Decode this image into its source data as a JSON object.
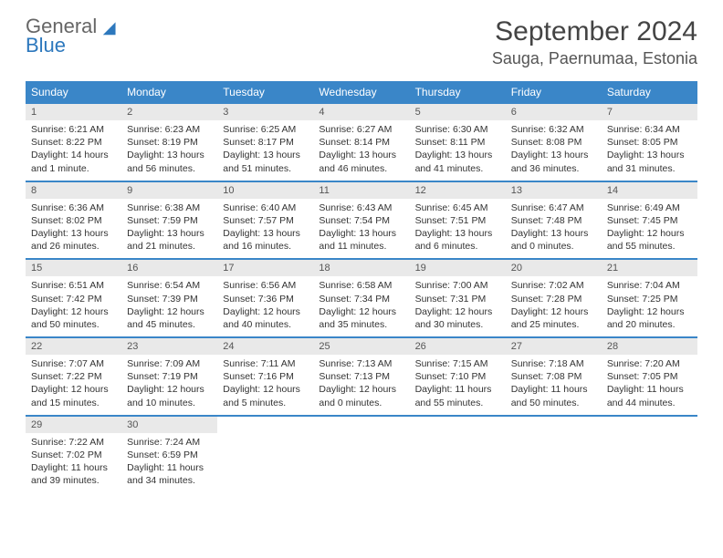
{
  "logo": {
    "line1": "General",
    "line2": "Blue"
  },
  "title": "September 2024",
  "location": "Sauga, Paernumaa, Estonia",
  "colors": {
    "header_bg": "#3a86c8",
    "header_text": "#ffffff",
    "daynum_bg": "#e9e9e9",
    "week_border": "#3a86c8",
    "logo_blue": "#2d78bd"
  },
  "weekdays": [
    "Sunday",
    "Monday",
    "Tuesday",
    "Wednesday",
    "Thursday",
    "Friday",
    "Saturday"
  ],
  "days": [
    {
      "n": 1,
      "sunrise": "6:21 AM",
      "sunset": "8:22 PM",
      "daylight": "14 hours and 1 minute."
    },
    {
      "n": 2,
      "sunrise": "6:23 AM",
      "sunset": "8:19 PM",
      "daylight": "13 hours and 56 minutes."
    },
    {
      "n": 3,
      "sunrise": "6:25 AM",
      "sunset": "8:17 PM",
      "daylight": "13 hours and 51 minutes."
    },
    {
      "n": 4,
      "sunrise": "6:27 AM",
      "sunset": "8:14 PM",
      "daylight": "13 hours and 46 minutes."
    },
    {
      "n": 5,
      "sunrise": "6:30 AM",
      "sunset": "8:11 PM",
      "daylight": "13 hours and 41 minutes."
    },
    {
      "n": 6,
      "sunrise": "6:32 AM",
      "sunset": "8:08 PM",
      "daylight": "13 hours and 36 minutes."
    },
    {
      "n": 7,
      "sunrise": "6:34 AM",
      "sunset": "8:05 PM",
      "daylight": "13 hours and 31 minutes."
    },
    {
      "n": 8,
      "sunrise": "6:36 AM",
      "sunset": "8:02 PM",
      "daylight": "13 hours and 26 minutes."
    },
    {
      "n": 9,
      "sunrise": "6:38 AM",
      "sunset": "7:59 PM",
      "daylight": "13 hours and 21 minutes."
    },
    {
      "n": 10,
      "sunrise": "6:40 AM",
      "sunset": "7:57 PM",
      "daylight": "13 hours and 16 minutes."
    },
    {
      "n": 11,
      "sunrise": "6:43 AM",
      "sunset": "7:54 PM",
      "daylight": "13 hours and 11 minutes."
    },
    {
      "n": 12,
      "sunrise": "6:45 AM",
      "sunset": "7:51 PM",
      "daylight": "13 hours and 6 minutes."
    },
    {
      "n": 13,
      "sunrise": "6:47 AM",
      "sunset": "7:48 PM",
      "daylight": "13 hours and 0 minutes."
    },
    {
      "n": 14,
      "sunrise": "6:49 AM",
      "sunset": "7:45 PM",
      "daylight": "12 hours and 55 minutes."
    },
    {
      "n": 15,
      "sunrise": "6:51 AM",
      "sunset": "7:42 PM",
      "daylight": "12 hours and 50 minutes."
    },
    {
      "n": 16,
      "sunrise": "6:54 AM",
      "sunset": "7:39 PM",
      "daylight": "12 hours and 45 minutes."
    },
    {
      "n": 17,
      "sunrise": "6:56 AM",
      "sunset": "7:36 PM",
      "daylight": "12 hours and 40 minutes."
    },
    {
      "n": 18,
      "sunrise": "6:58 AM",
      "sunset": "7:34 PM",
      "daylight": "12 hours and 35 minutes."
    },
    {
      "n": 19,
      "sunrise": "7:00 AM",
      "sunset": "7:31 PM",
      "daylight": "12 hours and 30 minutes."
    },
    {
      "n": 20,
      "sunrise": "7:02 AM",
      "sunset": "7:28 PM",
      "daylight": "12 hours and 25 minutes."
    },
    {
      "n": 21,
      "sunrise": "7:04 AM",
      "sunset": "7:25 PM",
      "daylight": "12 hours and 20 minutes."
    },
    {
      "n": 22,
      "sunrise": "7:07 AM",
      "sunset": "7:22 PM",
      "daylight": "12 hours and 15 minutes."
    },
    {
      "n": 23,
      "sunrise": "7:09 AM",
      "sunset": "7:19 PM",
      "daylight": "12 hours and 10 minutes."
    },
    {
      "n": 24,
      "sunrise": "7:11 AM",
      "sunset": "7:16 PM",
      "daylight": "12 hours and 5 minutes."
    },
    {
      "n": 25,
      "sunrise": "7:13 AM",
      "sunset": "7:13 PM",
      "daylight": "12 hours and 0 minutes."
    },
    {
      "n": 26,
      "sunrise": "7:15 AM",
      "sunset": "7:10 PM",
      "daylight": "11 hours and 55 minutes."
    },
    {
      "n": 27,
      "sunrise": "7:18 AM",
      "sunset": "7:08 PM",
      "daylight": "11 hours and 50 minutes."
    },
    {
      "n": 28,
      "sunrise": "7:20 AM",
      "sunset": "7:05 PM",
      "daylight": "11 hours and 44 minutes."
    },
    {
      "n": 29,
      "sunrise": "7:22 AM",
      "sunset": "7:02 PM",
      "daylight": "11 hours and 39 minutes."
    },
    {
      "n": 30,
      "sunrise": "7:24 AM",
      "sunset": "6:59 PM",
      "daylight": "11 hours and 34 minutes."
    }
  ],
  "labels": {
    "sunrise": "Sunrise:",
    "sunset": "Sunset:",
    "daylight": "Daylight:"
  },
  "layout": {
    "columns": 7,
    "start_weekday_index": 0,
    "total_cells": 35
  }
}
